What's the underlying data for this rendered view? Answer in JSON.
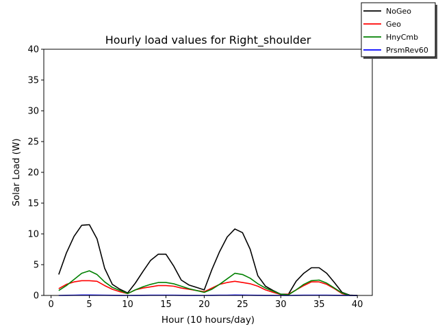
{
  "chart_data": {
    "type": "line",
    "title": "Hourly load values for Right_shoulder",
    "xlabel": "Hour (10 hours/day)",
    "ylabel": "Solar Load (W)",
    "xlim": [
      -0.95,
      41.95
    ],
    "ylim": [
      0,
      40
    ],
    "xticks": [
      0,
      5,
      10,
      15,
      20,
      25,
      30,
      35,
      40
    ],
    "yticks": [
      0,
      5,
      10,
      15,
      20,
      25,
      30,
      35,
      40
    ],
    "grid": false,
    "legend_position": "upper-right-outside",
    "x": [
      1,
      2,
      3,
      4,
      5,
      6,
      7,
      8,
      9,
      10,
      11,
      12,
      13,
      14,
      15,
      16,
      17,
      18,
      19,
      20,
      21,
      22,
      23,
      24,
      25,
      26,
      27,
      28,
      29,
      30,
      31,
      32,
      33,
      34,
      35,
      36,
      37,
      38,
      39,
      40
    ],
    "series": [
      {
        "name": "NoGeo",
        "color": "#000000",
        "values": [
          3.4,
          6.9,
          9.6,
          11.4,
          11.5,
          9.2,
          4.4,
          1.8,
          1.0,
          0.4,
          2.0,
          3.9,
          5.7,
          6.7,
          6.7,
          4.8,
          2.5,
          1.7,
          1.3,
          0.9,
          4.2,
          7.1,
          9.5,
          10.8,
          10.2,
          7.5,
          3.2,
          1.5,
          0.8,
          0.2,
          0.2,
          2.3,
          3.6,
          4.5,
          4.5,
          3.6,
          2.1,
          0.5,
          0.05,
          0.0
        ]
      },
      {
        "name": "Geo",
        "color": "#ff0000",
        "values": [
          1.1,
          1.8,
          2.2,
          2.4,
          2.4,
          2.3,
          1.6,
          1.0,
          0.6,
          0.3,
          0.9,
          1.2,
          1.4,
          1.6,
          1.6,
          1.5,
          1.2,
          1.0,
          0.8,
          0.6,
          1.2,
          1.8,
          2.1,
          2.3,
          2.1,
          1.9,
          1.5,
          0.9,
          0.5,
          0.15,
          0.2,
          0.9,
          1.6,
          2.2,
          2.2,
          1.8,
          1.1,
          0.3,
          0.0,
          0.0
        ]
      },
      {
        "name": "HnyCmb",
        "color": "#008000",
        "values": [
          0.8,
          1.6,
          2.6,
          3.6,
          4.0,
          3.4,
          2.2,
          1.3,
          0.8,
          0.3,
          0.9,
          1.4,
          1.8,
          2.1,
          2.1,
          1.9,
          1.5,
          1.1,
          0.8,
          0.5,
          1.0,
          1.8,
          2.7,
          3.6,
          3.4,
          2.8,
          1.9,
          1.2,
          0.7,
          0.2,
          0.1,
          0.9,
          1.8,
          2.4,
          2.5,
          2.0,
          1.2,
          0.4,
          0.0,
          0.0
        ]
      },
      {
        "name": "PrsmRev60",
        "color": "#0000ff",
        "values": [
          0.0,
          0.02,
          0.04,
          0.06,
          0.06,
          0.05,
          0.03,
          0.02,
          0.01,
          0.0,
          0.01,
          0.02,
          0.03,
          0.04,
          0.04,
          0.03,
          0.02,
          0.01,
          0.01,
          0.0,
          0.02,
          0.03,
          0.04,
          0.06,
          0.05,
          0.04,
          0.02,
          0.01,
          0.01,
          0.0,
          0.0,
          0.02,
          0.03,
          0.04,
          0.04,
          0.03,
          0.02,
          0.01,
          0.0,
          0.0
        ]
      }
    ]
  }
}
